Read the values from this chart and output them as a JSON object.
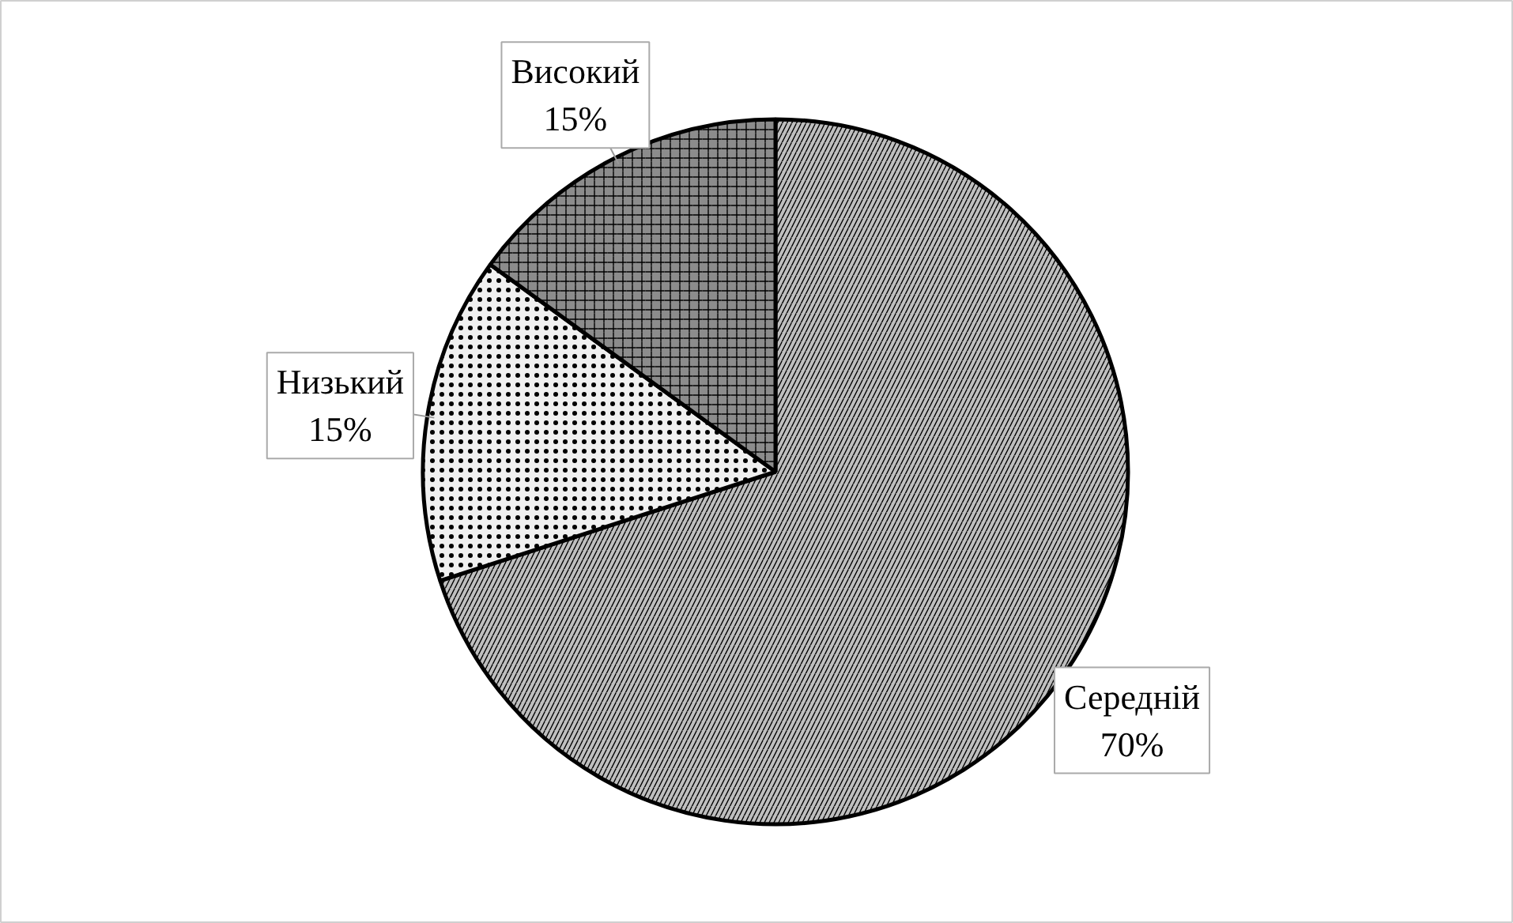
{
  "chart_data": {
    "type": "pie",
    "categories": [
      "Середній",
      "Низький",
      "Високий"
    ],
    "values": [
      70,
      15,
      15
    ],
    "value_labels": [
      "70%",
      "15%",
      "15%"
    ],
    "colors": [
      "#bfbfbf",
      "#f0f0f0",
      "#8c8c8c"
    ]
  }
}
